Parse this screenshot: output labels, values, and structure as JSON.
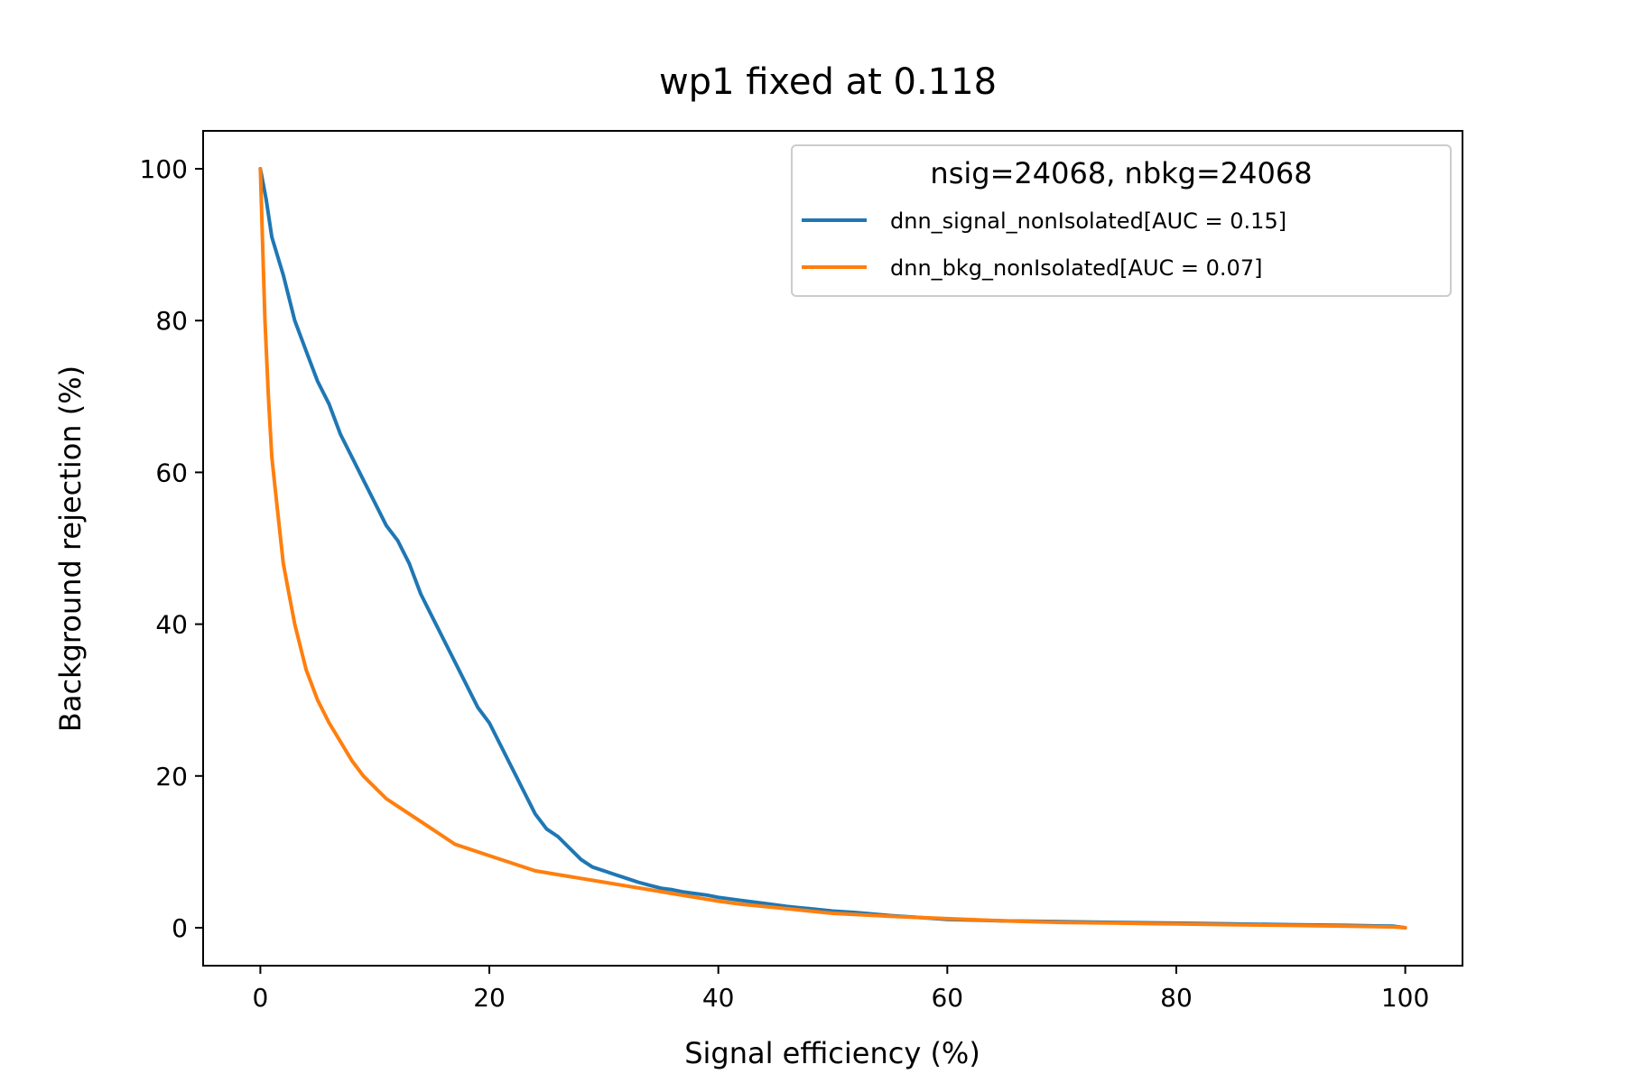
{
  "chart_data": {
    "type": "line",
    "title": "wp1 fixed at 0.118",
    "xlabel": "Signal efficiency (%)",
    "ylabel": "Background rejection (%)",
    "xlim": [
      -5,
      105
    ],
    "ylim": [
      -5,
      105
    ],
    "xticks": [
      0,
      20,
      40,
      60,
      80,
      100
    ],
    "xtick_labels": [
      "0",
      "20",
      "40",
      "60",
      "80",
      "100"
    ],
    "yticks": [
      0,
      20,
      40,
      60,
      80,
      100
    ],
    "ytick_labels": [
      "0",
      "20",
      "40",
      "60",
      "80",
      "100"
    ],
    "grid": false,
    "legend": {
      "title": "nsig=24068, nbkg=24068",
      "position": "upper right"
    },
    "series": [
      {
        "name": "dnn_signal_nonIsolated[AUC = 0.15]",
        "color": "#1f77b4",
        "x": [
          0,
          0.5,
          1,
          2,
          3,
          4,
          5,
          6,
          7,
          8,
          9,
          10,
          11,
          12,
          13,
          14,
          15,
          16,
          17,
          18,
          19,
          20,
          21,
          22,
          23,
          24,
          25,
          26,
          27,
          28,
          29,
          30,
          31,
          32,
          33,
          34,
          35,
          36,
          37,
          38,
          39,
          40,
          42,
          44,
          46,
          48,
          50,
          52,
          55,
          58,
          60,
          65,
          70,
          75,
          80,
          85,
          90,
          95,
          99,
          100
        ],
        "y": [
          100,
          96,
          91,
          86,
          80,
          76,
          72,
          69,
          65,
          62,
          59,
          56,
          53,
          51,
          48,
          44,
          41,
          38,
          35,
          32,
          29,
          27,
          24,
          21,
          18,
          15,
          13,
          12,
          10.5,
          9,
          8,
          7.5,
          7,
          6.5,
          6,
          5.6,
          5.2,
          5,
          4.7,
          4.5,
          4.3,
          4,
          3.6,
          3.2,
          2.8,
          2.5,
          2.2,
          2,
          1.6,
          1.3,
          1.1,
          0.9,
          0.8,
          0.7,
          0.6,
          0.5,
          0.4,
          0.3,
          0.2,
          0
        ]
      },
      {
        "name": "dnn_bkg_nonIsolated[AUC = 0.07]",
        "color": "#ff7f0e",
        "x": [
          0,
          0.2,
          0.4,
          0.7,
          1,
          1.5,
          2,
          2.5,
          3,
          3.5,
          4,
          5,
          6,
          7,
          8,
          9,
          10,
          11,
          12,
          13,
          14,
          15,
          16,
          17,
          18,
          20,
          22,
          24,
          26,
          28,
          30,
          32,
          34,
          36,
          38,
          40,
          42,
          44,
          46,
          48,
          50,
          55,
          60,
          65,
          70,
          75,
          80,
          85,
          90,
          95,
          99,
          100
        ],
        "y": [
          100,
          90,
          80,
          70,
          62,
          55,
          48,
          44,
          40,
          37,
          34,
          30,
          27,
          24.5,
          22,
          20,
          18.5,
          17,
          16,
          15,
          14,
          13,
          12,
          11,
          10.5,
          9.5,
          8.5,
          7.5,
          7,
          6.5,
          6,
          5.5,
          5,
          4.5,
          4,
          3.5,
          3.1,
          2.8,
          2.5,
          2.2,
          1.9,
          1.5,
          1.2,
          0.9,
          0.7,
          0.6,
          0.5,
          0.4,
          0.3,
          0.2,
          0.1,
          0
        ]
      }
    ]
  }
}
